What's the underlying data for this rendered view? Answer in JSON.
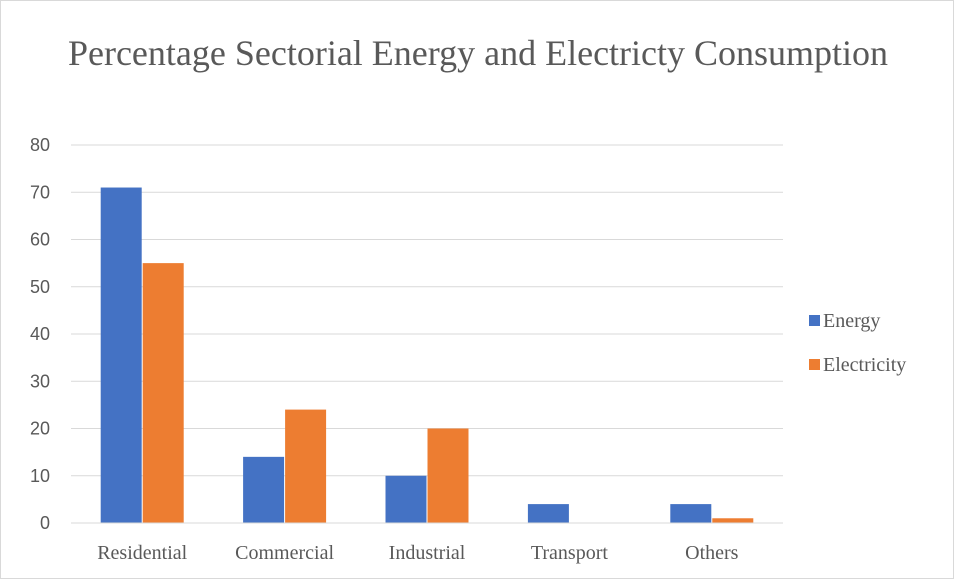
{
  "chart_data": {
    "type": "bar",
    "title": "Percentage Sectorial Energy and Electricty Consumption",
    "categories": [
      "Residential",
      "Commercial",
      "Industrial",
      "Transport",
      "Others"
    ],
    "series": [
      {
        "name": "Energy",
        "color": "#4472c4",
        "values": [
          71,
          14,
          10,
          4,
          4
        ]
      },
      {
        "name": "Electricity",
        "color": "#ed7d31",
        "values": [
          55,
          24,
          20,
          0,
          1
        ]
      }
    ],
    "ylim": [
      0,
      80
    ],
    "yticks": [
      0,
      10,
      20,
      30,
      40,
      50,
      60,
      70,
      80
    ],
    "grid": true,
    "legend": "right"
  }
}
